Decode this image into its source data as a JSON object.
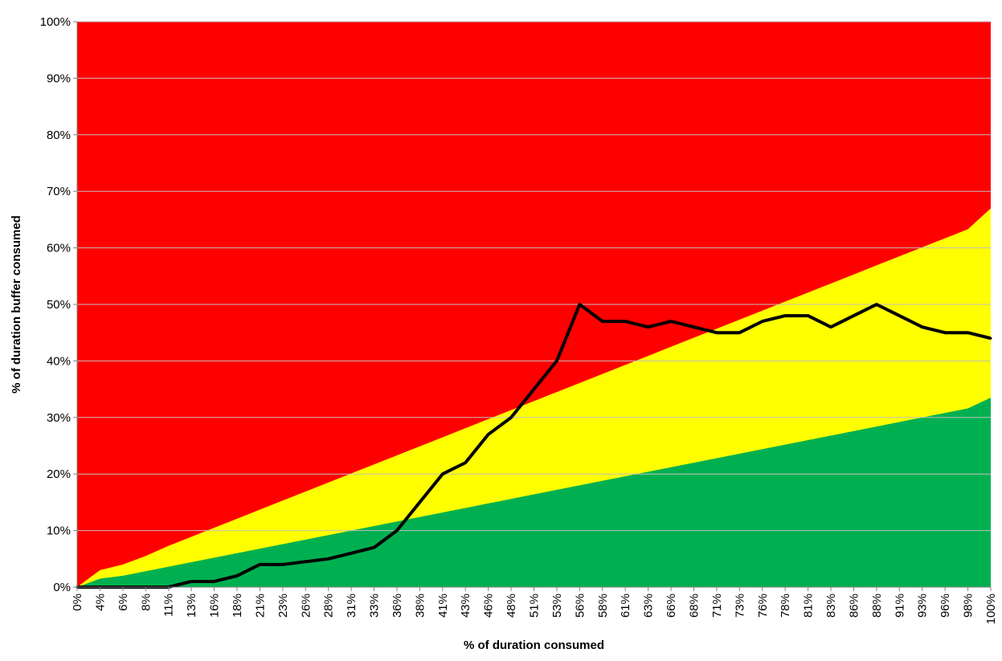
{
  "chart_data": {
    "type": "area",
    "title": "",
    "xlabel": "% of duration consumed",
    "ylabel": "% of duration buffer consumed",
    "x_ticks": [
      "0%",
      "4%",
      "6%",
      "8%",
      "11%",
      "13%",
      "16%",
      "18%",
      "21%",
      "23%",
      "26%",
      "28%",
      "31%",
      "33%",
      "36%",
      "38%",
      "41%",
      "43%",
      "46%",
      "48%",
      "51%",
      "53%",
      "56%",
      "58%",
      "61%",
      "63%",
      "66%",
      "68%",
      "71%",
      "73%",
      "76%",
      "78%",
      "81%",
      "83%",
      "86%",
      "88%",
      "91%",
      "93%",
      "96%",
      "98%",
      "100%"
    ],
    "y_ticks": [
      "0%",
      "10%",
      "20%",
      "30%",
      "40%",
      "50%",
      "60%",
      "70%",
      "80%",
      "90%",
      "100%"
    ],
    "ylim": [
      0,
      100
    ],
    "grid": true,
    "zones": [
      {
        "color": "#FF0000",
        "upper": [
          100,
          100,
          100,
          100,
          100,
          100,
          100,
          100,
          100,
          100,
          100,
          100,
          100,
          100,
          100,
          100,
          100,
          100,
          100,
          100,
          100,
          100,
          100,
          100,
          100,
          100,
          100,
          100,
          100,
          100,
          100,
          100,
          100,
          100,
          100,
          100,
          100,
          100,
          100,
          100,
          100
        ]
      },
      {
        "color": "#FFFF00",
        "upper": [
          0,
          3,
          4,
          5.5,
          7.3,
          8.9,
          10.5,
          12.1,
          13.7,
          15.3,
          16.9,
          18.5,
          20.1,
          21.7,
          23.3,
          24.9,
          26.5,
          28.1,
          29.7,
          31.3,
          32.9,
          34.5,
          36.1,
          37.7,
          39.3,
          40.9,
          42.5,
          44.1,
          45.7,
          47.3,
          48.9,
          50.5,
          52.1,
          53.7,
          55.3,
          56.9,
          58.5,
          60.1,
          61.7,
          63.3,
          67
        ]
      },
      {
        "color": "#00B050",
        "upper": [
          0,
          1.5,
          2,
          2.8,
          3.6,
          4.4,
          5.2,
          6,
          6.8,
          7.6,
          8.4,
          9.2,
          10,
          10.8,
          11.6,
          12.4,
          13.2,
          14,
          14.8,
          15.6,
          16.4,
          17.2,
          18,
          18.8,
          19.6,
          20.4,
          21.2,
          22,
          22.8,
          23.6,
          24.4,
          25.2,
          26,
          26.8,
          27.6,
          28.4,
          29.2,
          30,
          30.8,
          31.6,
          33.5
        ]
      }
    ],
    "series": [
      {
        "color": "#000000",
        "values": [
          0,
          0,
          0,
          0,
          0,
          1,
          1,
          2,
          4,
          4,
          4.5,
          5,
          6,
          7,
          10,
          15,
          20,
          22,
          27,
          30,
          35,
          40,
          50,
          47,
          47,
          46,
          47,
          46,
          45,
          45,
          47,
          48,
          48,
          46,
          48,
          50,
          48,
          46,
          45,
          45,
          44
        ]
      }
    ]
  }
}
